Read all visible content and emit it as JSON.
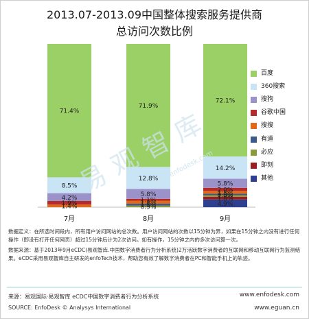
{
  "title_line1": "2013.07-2013.09中国整体搜索服务提供商",
  "title_line2": "总访问次数比例",
  "watermark": "易观智库",
  "watermark_sub": "www.enfodesk.com",
  "chart_data": {
    "type": "bar",
    "stacked": true,
    "percent": true,
    "categories": [
      "7月",
      "8月",
      "9月"
    ],
    "series": [
      {
        "name": "其他",
        "color": "#2e3f8f",
        "values": [
          null,
          null,
          4.9
        ]
      },
      {
        "name": "即刻",
        "color": "#9b1e1e",
        "values": [
          null,
          null,
          1.8
        ]
      },
      {
        "name": "必应",
        "color": "#8a9a3a",
        "values": [
          null,
          0.9,
          1.0
        ]
      },
      {
        "name": "有道",
        "color": "#3c5a8a",
        "values": [
          null,
          1.1,
          0.9
        ]
      },
      {
        "name": "搜搜",
        "color": "#e06a1a",
        "values": [
          1.4,
          1.8,
          1.8
        ]
      },
      {
        "name": "谷歌中国",
        "color": "#b52a2a",
        "values": [
          1.9,
          1.1,
          2.0
        ]
      },
      {
        "name": "搜狗",
        "color": "#9a92c8",
        "values": [
          4.2,
          5.8,
          5.8
        ]
      },
      {
        "name": "360搜索",
        "color": "#c9e4f5",
        "values": [
          8.5,
          12.8,
          14.2
        ]
      },
      {
        "name": "百度",
        "color": "#9bd066",
        "values": [
          71.4,
          71.9,
          72.1
        ]
      }
    ],
    "data_labels": [
      [
        "",
        "",
        "",
        "",
        "1.4%",
        "1.9%",
        "4.2%",
        "8.5%",
        "71.4%"
      ],
      [
        "",
        "",
        "0.9%",
        "1.1%",
        "1.8%",
        "1.1%",
        "5.8%",
        "12.8%",
        "71.9%"
      ],
      [
        "4.9%",
        "1.8%",
        "1.0%",
        "0.9%",
        "1.8%",
        "2.0%",
        "5.8%",
        "14.2%",
        "72.1%"
      ]
    ],
    "legend": [
      "百度",
      "360搜索",
      "搜狗",
      "谷歌中国",
      "搜搜",
      "有道",
      "必应",
      "即刻",
      "其他"
    ],
    "legend_position": "right",
    "ylim": [
      0,
      100
    ]
  },
  "notes": {
    "definition": "数据定义：在所选时间段内，所有用户访问网站的总次数。用户访问网站的次数以15分钟为界，如果在15分钟之内没有进行任何操作（即没有打开任何网页）超过15分钟后计为2次访问。如有操作，15分钟之内的多次访问算一次。",
    "datasource": "数据来源：基于2013年9月eCDC(易观智库.中国数字消费者行为分析系统)2万活跃数字消费者的互联网和移动互联网行为监测结果。eCDC采用易观智库自主研发的enfoTech技术，帮助您有效了解数字消费者在PC和智能手机上的轨迹。"
  },
  "footer": {
    "source_cn": "来源：易观国际·易观智库 eCDC中国数字消费者行为分析系统",
    "source_en": "SOURCE: EnfoDesk © Analysys International",
    "site1": "www.enfodesk.com",
    "site2": "www.eguan.cn"
  }
}
